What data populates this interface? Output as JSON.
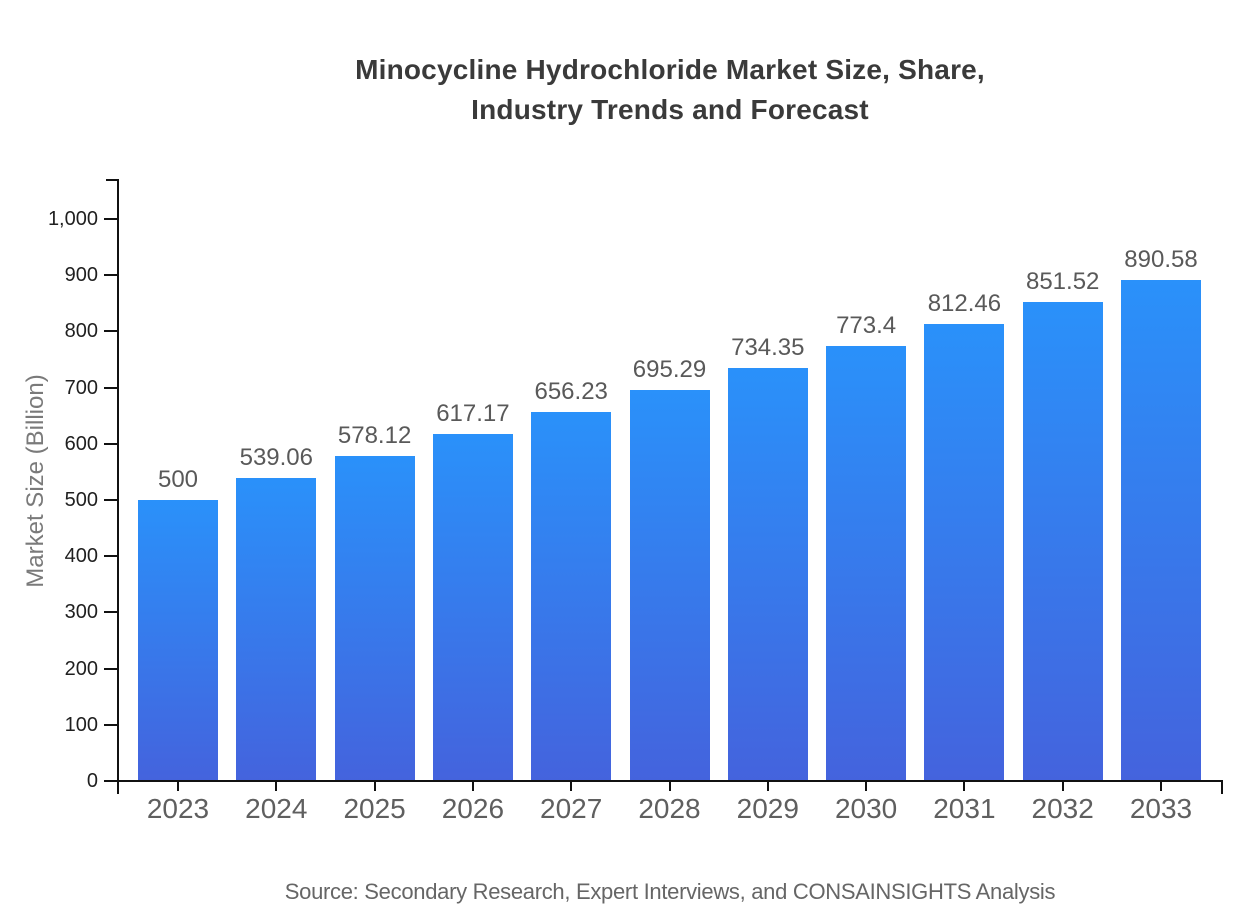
{
  "title": {
    "line1": "Minocycline Hydrochloride Market Size, Share,",
    "line2": "Industry Trends and Forecast"
  },
  "footer": {
    "source": "Source: Secondary Research, Expert Interviews, and CONSAINSIGHTS Analysis"
  },
  "chart_data": {
    "type": "bar",
    "title": "Minocycline Hydrochloride Market Size, Share, Industry Trends and Forecast",
    "xlabel": "",
    "ylabel": "Market Size (Billion)",
    "categories": [
      "2023",
      "2024",
      "2025",
      "2026",
      "2027",
      "2028",
      "2029",
      "2030",
      "2031",
      "2032",
      "2033"
    ],
    "values": [
      500,
      539.06,
      578.12,
      617.17,
      656.23,
      695.29,
      734.35,
      773.4,
      812.46,
      851.52,
      890.58
    ],
    "value_labels": [
      "500",
      "539.06",
      "578.12",
      "617.17",
      "656.23",
      "695.29",
      "734.35",
      "773.4",
      "812.46",
      "851.52",
      "890.58"
    ],
    "ylim": [
      0,
      1000
    ],
    "y_tick_values": [
      0,
      100,
      200,
      300,
      400,
      500,
      600,
      700,
      800,
      900,
      1000
    ],
    "y_tick_labels": [
      "0",
      "100",
      "200",
      "300",
      "400",
      "500",
      "600",
      "700",
      "800",
      "900",
      "1,000"
    ],
    "grid": false,
    "legend": false,
    "bar_orientation": "vertical",
    "colors": {
      "bar_gradient_top": "#2a91fa",
      "bar_gradient_bottom": "#4463dd",
      "axis": "#111111",
      "tick_label": "#1f1f1f",
      "category_label": "#5f5f5f",
      "value_label": "#595959",
      "axis_title": "#7a7a7a",
      "title": "#3a3a3a",
      "source": "#666666",
      "background": "#ffffff"
    }
  }
}
